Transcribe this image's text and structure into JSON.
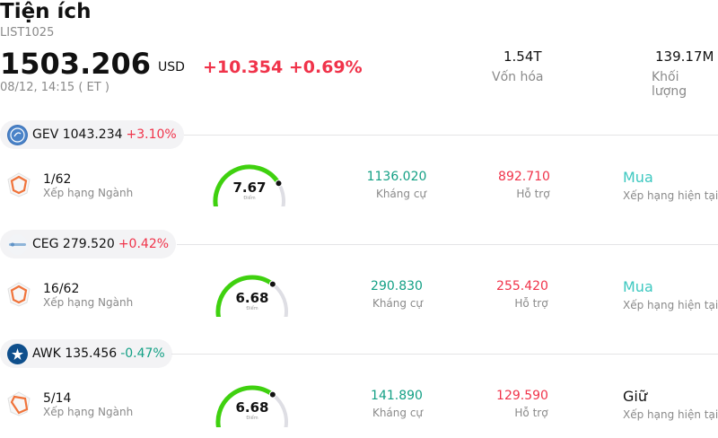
{
  "header": {
    "title": "Tiện ích",
    "code": "LIST1025",
    "price": "1503.206",
    "currency": "USD",
    "change": "+10.354 +0.69%",
    "time": "08/12, 14:15  ( ET )",
    "market_cap_value": "1.54T",
    "market_cap_label": "Vốn hóa",
    "volume_value": "139.17M",
    "volume_label": "Khối lượng"
  },
  "stocks": [
    {
      "ticker_line": "GEV 1043.234",
      "pct": "+3.10%",
      "logo_icon": "ge-vernova-logo-icon",
      "rank": "1/62",
      "rank_label": "Xếp hạng Ngành",
      "score": "7.67",
      "score_label": "Điểm",
      "score_fraction": 0.767,
      "resistance": "1136.020",
      "resistance_label": "Kháng cự",
      "support": "892.710",
      "support_label": "Hỗ trợ",
      "rating": "Mua",
      "rating_label": "Xếp hạng hiện tại"
    },
    {
      "ticker_line": "CEG 279.520",
      "pct": "+0.42%",
      "logo_icon": "constellation-logo-icon",
      "rank": "16/62",
      "rank_label": "Xếp hạng Ngành",
      "score": "6.68",
      "score_label": "Điểm",
      "score_fraction": 0.668,
      "resistance": "290.830",
      "resistance_label": "Kháng cự",
      "support": "255.420",
      "support_label": "Hỗ trợ",
      "rating": "Mua",
      "rating_label": "Xếp hạng hiện tại"
    },
    {
      "ticker_line": "AWK 135.456",
      "pct": "-0.47%",
      "logo_icon": "american-water-logo-icon",
      "rank": "5/14",
      "rank_label": "Xếp hạng Ngành",
      "score": "6.68",
      "score_label": "Điểm",
      "score_fraction": 0.668,
      "resistance": "141.890",
      "resistance_label": "Kháng cự",
      "support": "129.590",
      "support_label": "Hỗ trợ",
      "rating": "Giữ",
      "rating_label": "Xếp hạng hiện tại"
    }
  ],
  "colors": {
    "up": "#f0334a",
    "down": "#14a085",
    "gauge_fill": "#3fd10f",
    "gauge_track": "#dedee4",
    "buy": "#3dc8c0",
    "hold": "#111111",
    "badge": "#f0733a"
  }
}
